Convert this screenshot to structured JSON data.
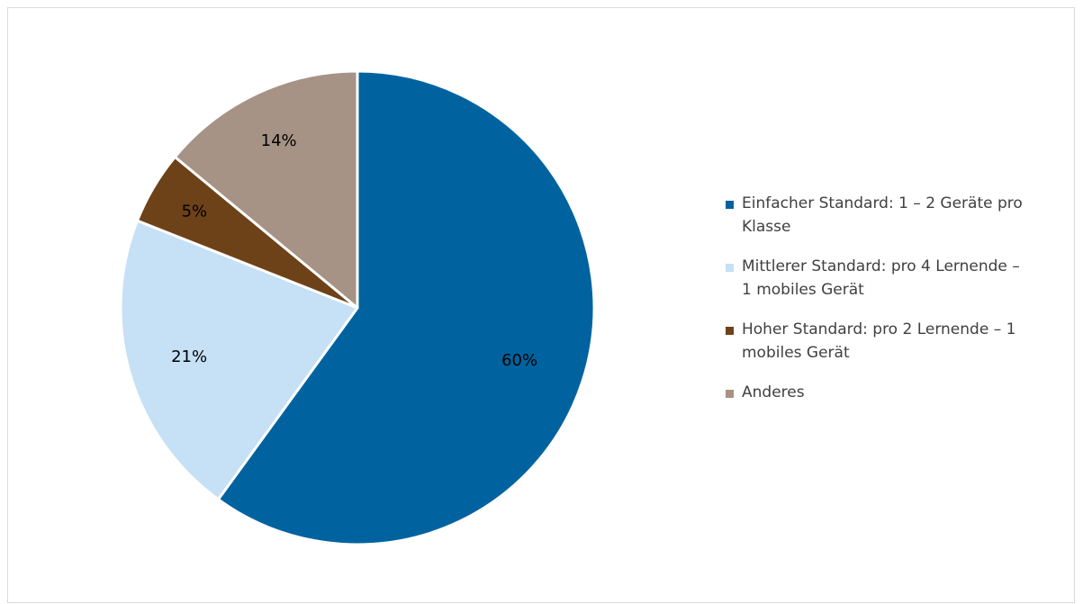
{
  "chart_data": {
    "type": "pie",
    "title": "",
    "categories": [
      "Einfacher Standard: 1 – 2 Geräte pro\nKlasse",
      "Mittlerer Standard: pro 4 Lernende –\n1 mobiles Gerät",
      "Hoher Standard: pro 2 Lernende – 1\nmobiles Gerät",
      "Anderes"
    ],
    "values": [
      60,
      21,
      5,
      14
    ],
    "data_labels": [
      "60%",
      "21%",
      "5%",
      "14%"
    ],
    "colors": [
      "#0063a0",
      "#c6e0f5",
      "#6e4218",
      "#a69385"
    ],
    "legend_position": "right"
  }
}
